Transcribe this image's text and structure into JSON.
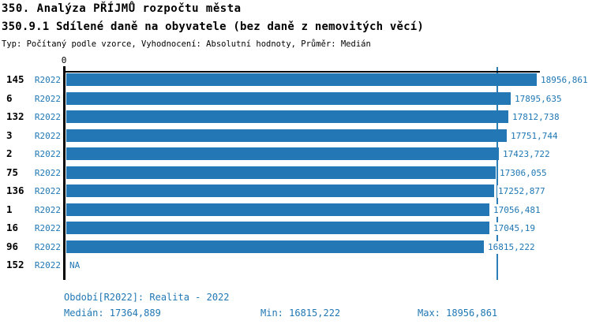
{
  "header": {
    "title": "350. Analýza PŘÍJMŮ rozpočtu města",
    "subtitle": "350.9.1 Sdílené daně na obyvatele (bez daně z nemovitých věcí)",
    "meta": "Typ: Počítaný podle vzorce, Vyhodnocení: Absolutní hodnoty, Průměr: Medián"
  },
  "chart_data": {
    "type": "bar",
    "orientation": "horizontal",
    "axis": {
      "zero_tick_label": "0",
      "xlim": [
        0,
        19050
      ],
      "grid": "median-line-only"
    },
    "series_label": "R2022",
    "rows": [
      {
        "category": "145",
        "series": "R2022",
        "value": 18956.861,
        "value_label": "18956,861"
      },
      {
        "category": "6",
        "series": "R2022",
        "value": 17895.635,
        "value_label": "17895,635"
      },
      {
        "category": "132",
        "series": "R2022",
        "value": 17812.738,
        "value_label": "17812,738"
      },
      {
        "category": "3",
        "series": "R2022",
        "value": 17751.744,
        "value_label": "17751,744"
      },
      {
        "category": "2",
        "series": "R2022",
        "value": 17423.722,
        "value_label": "17423,722"
      },
      {
        "category": "75",
        "series": "R2022",
        "value": 17306.055,
        "value_label": "17306,055"
      },
      {
        "category": "136",
        "series": "R2022",
        "value": 17252.877,
        "value_label": "17252,877"
      },
      {
        "category": "1",
        "series": "R2022",
        "value": 17056.481,
        "value_label": "17056,481"
      },
      {
        "category": "16",
        "series": "R2022",
        "value": 17045.19,
        "value_label": "17045,19"
      },
      {
        "category": "96",
        "series": "R2022",
        "value": 16815.222,
        "value_label": "16815,222"
      },
      {
        "category": "152",
        "series": "R2022",
        "value": null,
        "value_label": "NA"
      }
    ],
    "median": 17364.889,
    "colors": {
      "bar": "#2277b4",
      "median_line": "#2e7fb8",
      "label_text": "#1f77b4",
      "axis": "#000000"
    }
  },
  "footer": {
    "period": "Období[R2022]: Realita - 2022",
    "median": "Medián: 17364,889",
    "min": "Min: 16815,222",
    "max": "Max: 18956,861"
  }
}
